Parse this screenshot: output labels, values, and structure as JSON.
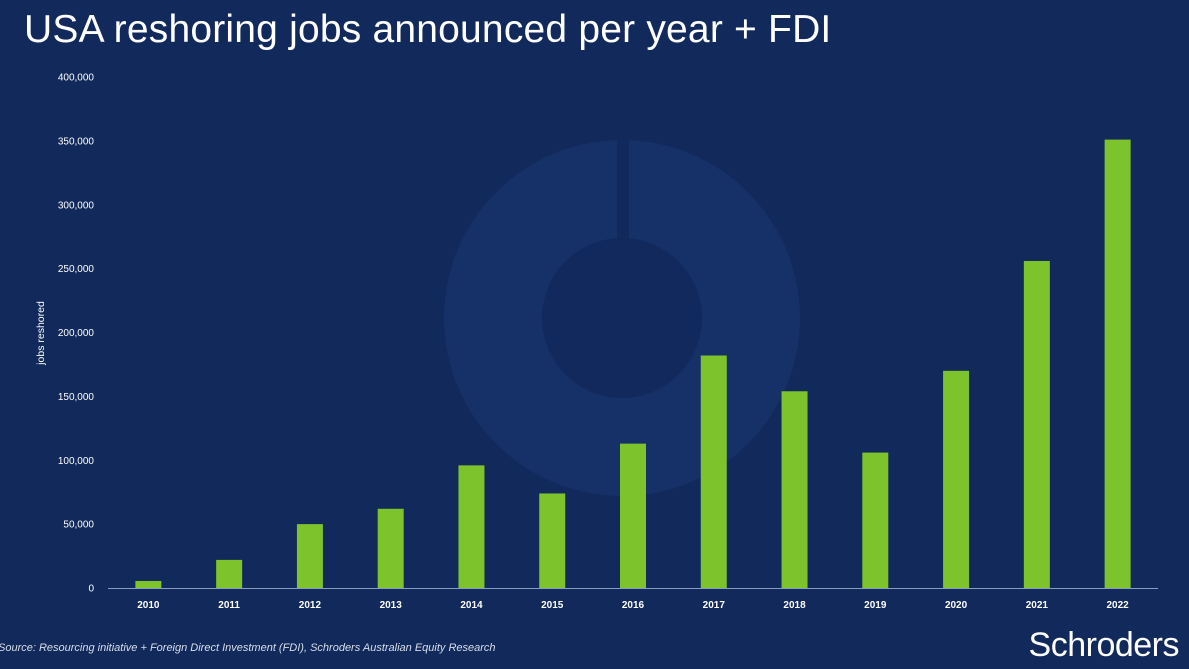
{
  "slide": {
    "title": "USA reshoring jobs announced per year + FDI",
    "source": "Source: Resourcing initiative + Foreign Direct Investment (FDI), Schroders Australian Equity Research",
    "logo_text": "Schroders",
    "background_color": "#11295b"
  },
  "chart_data": {
    "type": "bar",
    "title": "USA reshoring jobs announced per year + FDI",
    "xlabel": "",
    "ylabel": "jobs reshored",
    "categories": [
      "2010",
      "2011",
      "2012",
      "2013",
      "2014",
      "2015",
      "2016",
      "2017",
      "2018",
      "2019",
      "2020",
      "2021",
      "2022"
    ],
    "values": [
      5500,
      22000,
      50000,
      62000,
      96000,
      74000,
      113000,
      182000,
      154000,
      106000,
      170000,
      256000,
      351000
    ],
    "ylim": [
      0,
      400000
    ],
    "yticks": [
      0,
      50000,
      100000,
      150000,
      200000,
      250000,
      300000,
      350000,
      400000
    ],
    "ytick_labels": [
      "0",
      "50,000",
      "100,000",
      "150,000",
      "200,000",
      "250,000",
      "300,000",
      "350,000",
      "400,000"
    ],
    "bar_color": "#7dc42c",
    "grid": false,
    "legend": "none"
  }
}
